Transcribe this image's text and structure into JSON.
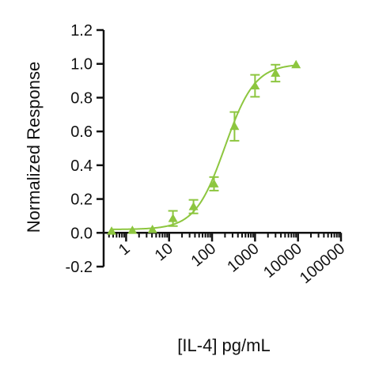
{
  "chart_data": {
    "type": "scatter",
    "xlabel": "[IL-4] pg/mL",
    "ylabel": "Normalized Response",
    "x_scale": "log",
    "xlim": [
      0.3,
      100000
    ],
    "ylim": [
      -0.2,
      1.2
    ],
    "grid": false,
    "y_ticks": [
      {
        "value": -0.2,
        "label": "-0.2"
      },
      {
        "value": 0.0,
        "label": "0.0"
      },
      {
        "value": 0.2,
        "label": "0.2"
      },
      {
        "value": 0.4,
        "label": "0.4"
      },
      {
        "value": 0.6,
        "label": "0.6"
      },
      {
        "value": 0.8,
        "label": "0.8"
      },
      {
        "value": 1.0,
        "label": "1.0"
      },
      {
        "value": 1.2,
        "label": "1.2"
      }
    ],
    "x_ticks": [
      {
        "value": 1,
        "label": "1"
      },
      {
        "value": 10,
        "label": "10"
      },
      {
        "value": 100,
        "label": "100"
      },
      {
        "value": 1000,
        "label": "1000"
      },
      {
        "value": 10000,
        "label": "10000"
      },
      {
        "value": 100000,
        "label": "100000"
      }
    ],
    "series": [
      {
        "color": "#8dc63f",
        "marker": "triangle",
        "points": [
          {
            "x": 0.46,
            "y": 0.01,
            "err": 0.0
          },
          {
            "x": 1.4,
            "y": 0.015,
            "err": 0.0
          },
          {
            "x": 4.1,
            "y": 0.02,
            "err": 0.0
          },
          {
            "x": 12.3,
            "y": 0.085,
            "err": 0.045
          },
          {
            "x": 37,
            "y": 0.155,
            "err": 0.04
          },
          {
            "x": 111,
            "y": 0.29,
            "err": 0.04
          },
          {
            "x": 333,
            "y": 0.63,
            "err": 0.085
          },
          {
            "x": 1000,
            "y": 0.87,
            "err": 0.065
          },
          {
            "x": 3000,
            "y": 0.945,
            "err": 0.05
          },
          {
            "x": 9000,
            "y": 0.995,
            "err": 0.0
          }
        ],
        "fit": {
          "model": "4PL",
          "bottom": 0.02,
          "top": 1.0,
          "ec50": 200,
          "hill": 1.25
        }
      }
    ]
  }
}
